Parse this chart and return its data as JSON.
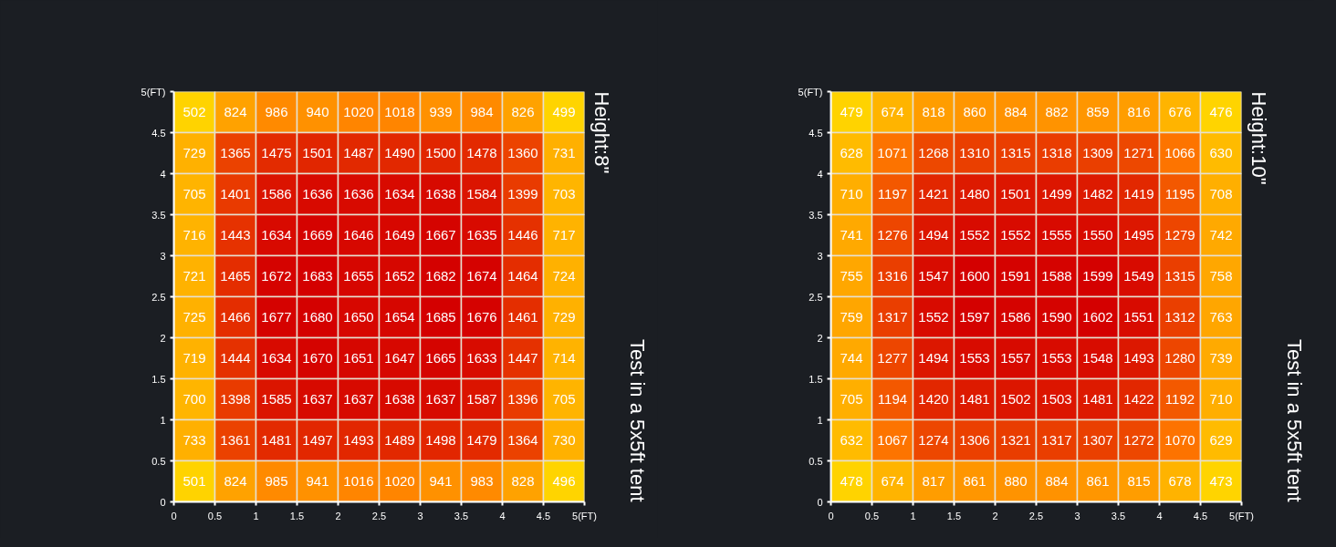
{
  "chart_data": [
    {
      "type": "heatmap",
      "x": [
        0.25,
        0.75,
        1.25,
        1.75,
        2.25,
        2.75,
        3.25,
        3.75,
        4.25,
        4.75
      ],
      "y": [
        4.75,
        4.25,
        3.75,
        3.25,
        2.75,
        2.25,
        1.75,
        1.25,
        0.75,
        0.25
      ],
      "cells": [
        [
          502,
          824,
          986,
          940,
          1020,
          1018,
          939,
          984,
          826,
          499
        ],
        [
          729,
          1365,
          1475,
          1501,
          1487,
          1490,
          1500,
          1478,
          1360,
          731
        ],
        [
          705,
          1401,
          1586,
          1636,
          1636,
          1634,
          1638,
          1584,
          1399,
          703
        ],
        [
          716,
          1443,
          1634,
          1669,
          1646,
          1649,
          1667,
          1635,
          1446,
          717
        ],
        [
          721,
          1465,
          1672,
          1683,
          1655,
          1652,
          1682,
          1674,
          1464,
          724
        ],
        [
          725,
          1466,
          1677,
          1680,
          1650,
          1654,
          1685,
          1676,
          1461,
          729
        ],
        [
          719,
          1444,
          1634,
          1670,
          1651,
          1647,
          1665,
          1633,
          1447,
          714
        ],
        [
          700,
          1398,
          1585,
          1637,
          1637,
          1638,
          1637,
          1587,
          1396,
          705
        ],
        [
          733,
          1361,
          1481,
          1497,
          1493,
          1489,
          1498,
          1479,
          1364,
          730
        ],
        [
          501,
          824,
          985,
          941,
          1016,
          1020,
          941,
          983,
          828,
          496
        ]
      ],
      "data_labels": true,
      "xlim": [
        0,
        5
      ],
      "xticks": [
        0,
        0.5,
        1,
        1.5,
        2,
        2.5,
        3,
        3.5,
        4,
        4.5,
        {
          "value": 5,
          "label": "5(FT)"
        }
      ],
      "ylim": [
        0,
        5
      ],
      "yticks": [
        0,
        0.5,
        1,
        1.5,
        2,
        2.5,
        3,
        3.5,
        4,
        4.5,
        {
          "value": 5,
          "label": "5(FT)"
        }
      ],
      "annotations": [
        "Height:8\"",
        "Test in a 5x5ft tent"
      ]
    },
    {
      "type": "heatmap",
      "x": [
        0.25,
        0.75,
        1.25,
        1.75,
        2.25,
        2.75,
        3.25,
        3.75,
        4.25,
        4.75
      ],
      "y": [
        4.75,
        4.25,
        3.75,
        3.25,
        2.75,
        2.25,
        1.75,
        1.25,
        0.75,
        0.25
      ],
      "cells": [
        [
          479,
          674,
          818,
          860,
          884,
          882,
          859,
          816,
          676,
          476
        ],
        [
          628,
          1071,
          1268,
          1310,
          1315,
          1318,
          1309,
          1271,
          1066,
          630
        ],
        [
          710,
          1197,
          1421,
          1480,
          1501,
          1499,
          1482,
          1419,
          1195,
          708
        ],
        [
          741,
          1276,
          1494,
          1552,
          1552,
          1555,
          1550,
          1495,
          1279,
          742
        ],
        [
          755,
          1316,
          1547,
          1600,
          1591,
          1588,
          1599,
          1549,
          1315,
          758
        ],
        [
          759,
          1317,
          1552,
          1597,
          1586,
          1590,
          1602,
          1551,
          1312,
          763
        ],
        [
          744,
          1277,
          1494,
          1553,
          1557,
          1553,
          1548,
          1493,
          1280,
          739
        ],
        [
          705,
          1194,
          1420,
          1481,
          1502,
          1503,
          1481,
          1422,
          1192,
          710
        ],
        [
          632,
          1067,
          1274,
          1306,
          1321,
          1317,
          1307,
          1272,
          1070,
          629
        ],
        [
          478,
          674,
          817,
          861,
          880,
          884,
          861,
          815,
          678,
          473
        ]
      ],
      "data_labels": true,
      "xlim": [
        0,
        5
      ],
      "xticks": [
        0,
        0.5,
        1,
        1.5,
        2,
        2.5,
        3,
        3.5,
        4,
        4.5,
        {
          "value": 5,
          "label": "5(FT)"
        }
      ],
      "ylim": [
        0,
        5
      ],
      "yticks": [
        0,
        0.5,
        1,
        1.5,
        2,
        2.5,
        3,
        3.5,
        4,
        4.5,
        {
          "value": 5,
          "label": "5(FT)"
        }
      ],
      "annotations": [
        "Height:10\"",
        "Test in a 5x5ft tent"
      ]
    }
  ]
}
